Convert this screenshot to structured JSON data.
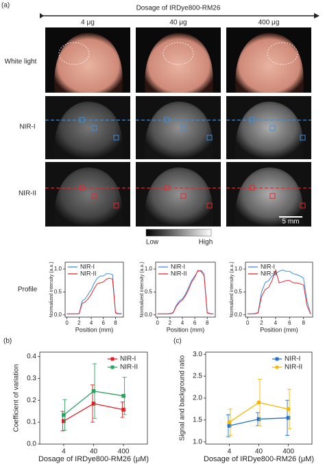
{
  "figure": {
    "panel_labels": [
      "(a)",
      "(b)",
      "(c)"
    ],
    "header": "Dosage of IRDye800-RM26",
    "columns": [
      "4 μg",
      "40 μg",
      "400 μg"
    ],
    "rows": [
      "White light",
      "NIR-I",
      "NIR-II",
      "Profile"
    ],
    "colorbar": [
      "Low",
      "High"
    ],
    "scale_bar": "5 mm"
  },
  "chart_data": [
    {
      "type": "line",
      "xlabel": "Position (mm)",
      "ylabel": "Normalized intensity (a.u.)",
      "legend": "upper left",
      "x": [
        0,
        0.5,
        1,
        1.5,
        2,
        2.5,
        3,
        3.5,
        4,
        4.5,
        5,
        5.5,
        6,
        6.5,
        7,
        7.5,
        8,
        8.5,
        9
      ],
      "series": [
        {
          "name": "NIR-I",
          "color": "#3a8ee0",
          "values": [
            0.02,
            0.02,
            0.02,
            0.02,
            0.03,
            0.3,
            0.35,
            0.45,
            0.55,
            0.7,
            0.8,
            0.85,
            0.85,
            0.9,
            0.9,
            0.88,
            0.05,
            0.03,
            0.03
          ]
        },
        {
          "name": "NIR-II",
          "color": "#e8262a",
          "values": [
            0.02,
            0.02,
            0.02,
            0.02,
            0.02,
            0.25,
            0.28,
            0.35,
            0.45,
            0.58,
            0.68,
            0.7,
            0.72,
            0.78,
            0.8,
            0.78,
            0.04,
            0.02,
            0.02
          ]
        }
      ],
      "xlim": [
        -0.3,
        9.3
      ],
      "ylim": [
        -0.05,
        1.15
      ],
      "xticks": [
        0,
        2,
        4,
        6,
        8
      ],
      "yticks": [
        {
          "value": 0,
          "label": "0.0"
        },
        0.5,
        {
          "value": 1,
          "label": "1.0"
        }
      ]
    },
    {
      "type": "line",
      "xlabel": "Position (mm)",
      "ylabel": "Normalized intensity (a.u.)",
      "legend": "upper left",
      "x": [
        0,
        0.5,
        1,
        1.5,
        2,
        2.5,
        3,
        3.5,
        4,
        4.5,
        5,
        5.5,
        6,
        6.5,
        7,
        7.5,
        8,
        8.5,
        9
      ],
      "series": [
        {
          "name": "NIR-I",
          "color": "#3a8ee0",
          "values": [
            0.02,
            0.02,
            0.02,
            0.02,
            0.03,
            0.05,
            0.2,
            0.3,
            0.35,
            0.45,
            0.6,
            0.75,
            0.85,
            0.95,
            0.97,
            0.9,
            0.05,
            0.03,
            0.02
          ]
        },
        {
          "name": "NIR-II",
          "color": "#e8262a",
          "values": [
            0.02,
            0.02,
            0.02,
            0.02,
            0.02,
            0.04,
            0.18,
            0.27,
            0.32,
            0.42,
            0.55,
            0.72,
            0.82,
            0.97,
            0.95,
            0.85,
            0.04,
            0.02,
            0.02
          ]
        }
      ],
      "xlim": [
        -0.3,
        9.3
      ],
      "ylim": [
        -0.05,
        1.15
      ],
      "xticks": [
        0,
        2,
        4,
        6,
        8
      ],
      "yticks": [
        {
          "value": 0,
          "label": "0.0"
        },
        0.5,
        {
          "value": 1,
          "label": "1.0"
        }
      ]
    },
    {
      "type": "line",
      "xlabel": "Position (mm)",
      "ylabel": "Normalized intensity (a.u.)",
      "legend": "upper left",
      "x": [
        0,
        0.5,
        1,
        1.5,
        2,
        2.5,
        3,
        3.5,
        4,
        4.5,
        5,
        5.5,
        6,
        6.5,
        7,
        7.5,
        8,
        8.5,
        9
      ],
      "series": [
        {
          "name": "NIR-I",
          "color": "#3a8ee0",
          "values": [
            0.02,
            0.02,
            0.03,
            0.05,
            0.5,
            0.7,
            0.75,
            0.85,
            0.9,
            0.95,
            0.98,
            0.95,
            0.95,
            0.9,
            0.88,
            0.85,
            0.8,
            0.3,
            0.03
          ]
        },
        {
          "name": "NIR-II",
          "color": "#e8262a",
          "values": [
            0.02,
            0.02,
            0.02,
            0.04,
            0.4,
            0.55,
            0.6,
            0.75,
            0.98,
            0.7,
            0.72,
            0.75,
            0.75,
            0.7,
            0.7,
            0.68,
            0.65,
            0.2,
            0.02
          ]
        }
      ],
      "xlim": [
        -0.3,
        9.3
      ],
      "ylim": [
        -0.05,
        1.15
      ],
      "xticks": [
        0,
        2,
        4,
        6,
        8
      ],
      "yticks": [
        {
          "value": 0,
          "label": "0.0"
        },
        0.5,
        {
          "value": 1,
          "label": "1.0"
        }
      ]
    },
    {
      "type": "errorline",
      "xlabel": "Dosage of IRDye800-RM26 (μM)",
      "ylabel": "Coefficient of variation",
      "legend": "upper right",
      "categories": [
        "4",
        "40",
        "400"
      ],
      "series": [
        {
          "name": "NIR-I",
          "color": "#e41a1c",
          "marker": "square",
          "values": [
            0.105,
            0.185,
            0.157
          ],
          "errors": [
            0.045,
            0.085,
            0.035
          ]
        },
        {
          "name": "NIR-II",
          "color": "#2ca25f",
          "marker": "square",
          "values": [
            0.133,
            0.242,
            0.22
          ],
          "errors": [
            0.07,
            0.125,
            0.085
          ]
        }
      ],
      "ylim": [
        0,
        0.42
      ],
      "yticks": [
        {
          "value": 0,
          "label": "0.0"
        },
        0.1,
        0.2,
        0.3,
        0.4
      ]
    },
    {
      "type": "errorline",
      "xlabel": "Dosage of IRDye800-RM26 (μM)",
      "ylabel": "Signal and background ratio",
      "legend": "upper right",
      "categories": [
        "4",
        "40",
        "400"
      ],
      "series": [
        {
          "name": "NIR-I",
          "color": "#1f6fd0",
          "marker": "square",
          "values": [
            1.37,
            1.52,
            1.55
          ],
          "errors": [
            0.25,
            0.15,
            0.4
          ]
        },
        {
          "name": "NIR-II",
          "color": "#f5b800",
          "marker": "circle",
          "values": [
            1.45,
            1.9,
            1.75
          ],
          "errors": [
            0.3,
            0.53,
            0.45
          ]
        }
      ],
      "ylim": [
        0.95,
        3.05
      ],
      "yticks": [
        {
          "value": 1,
          "label": "1.0"
        },
        1.5,
        {
          "value": 2,
          "label": "2.0"
        },
        2.5,
        {
          "value": 3,
          "label": "3.0"
        }
      ]
    }
  ]
}
